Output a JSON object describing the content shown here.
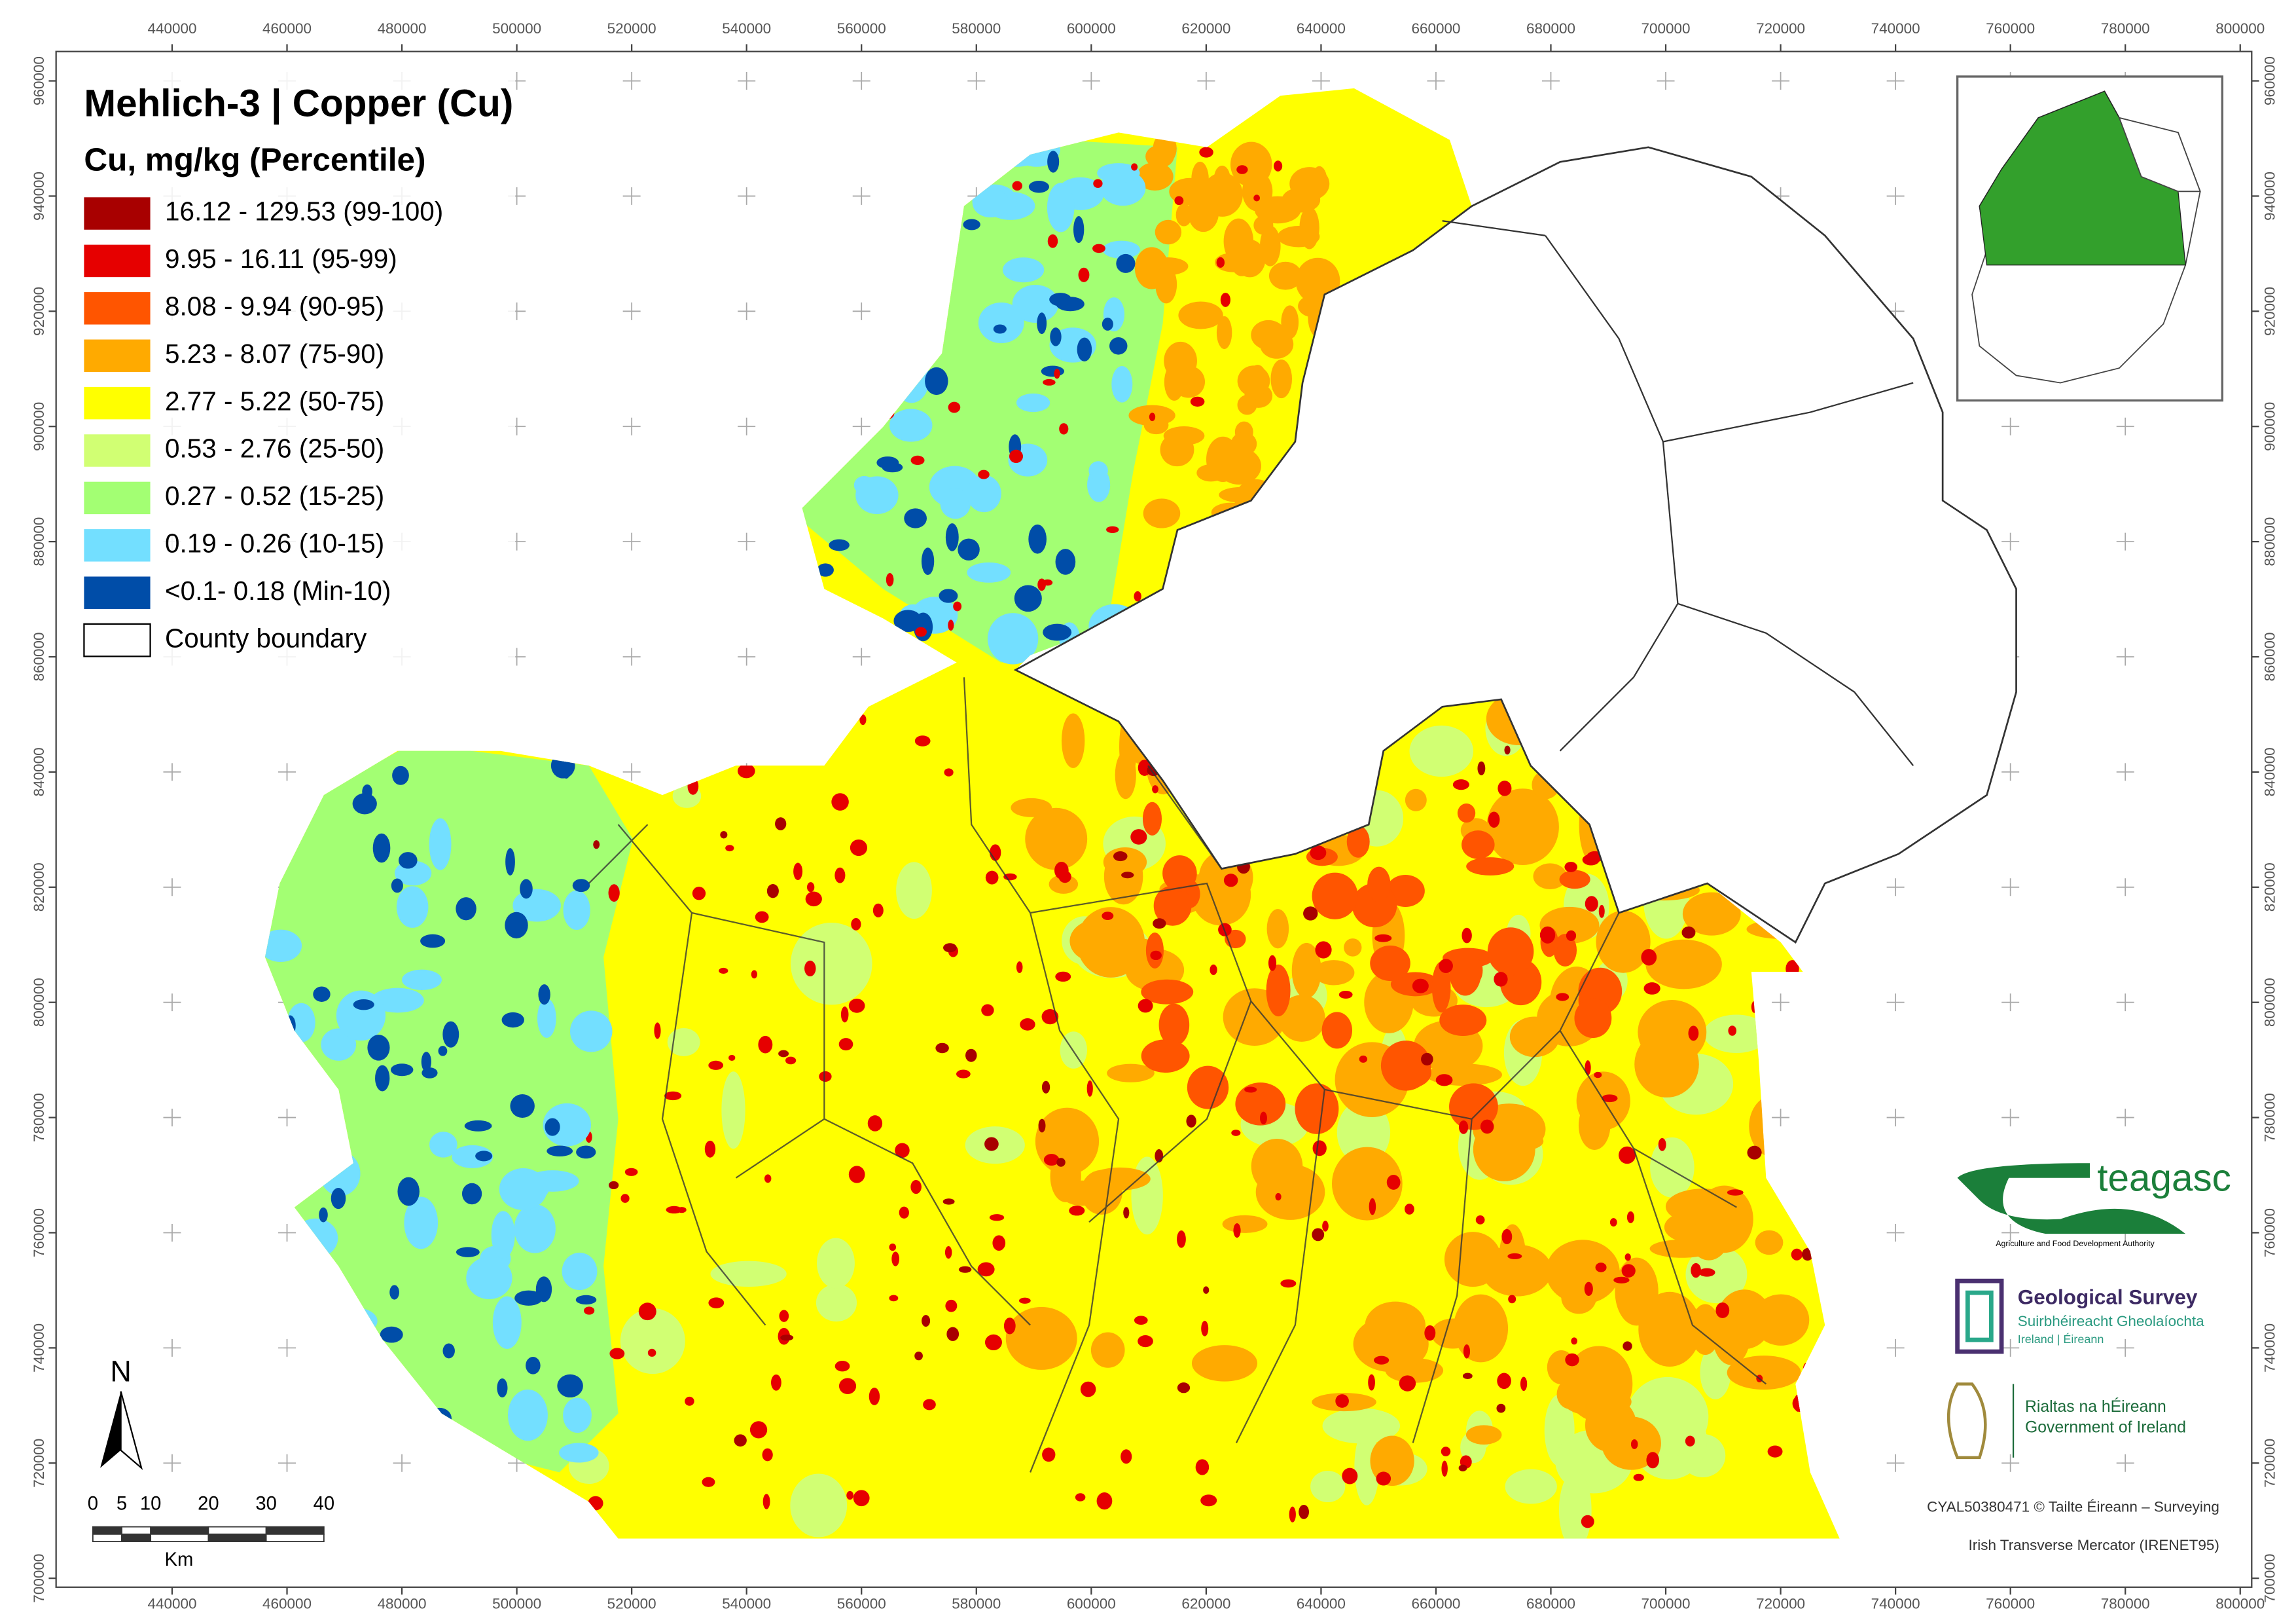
{
  "map": {
    "title": "Mehlich-3 | Copper (Cu)",
    "legend_title": "Cu, mg/kg (Percentile)",
    "legend": [
      {
        "label": "16.12 - 129.53 (99-100)",
        "color": "#a80000"
      },
      {
        "label": "9.95 - 16.11 (95-99)",
        "color": "#e60000"
      },
      {
        "label": "8.08 - 9.94 (90-95)",
        "color": "#ff5500"
      },
      {
        "label": "5.23 - 8.07 (75-90)",
        "color": "#ffaa00"
      },
      {
        "label": "2.77 - 5.22 (50-75)",
        "color": "#ffff00"
      },
      {
        "label": "0.53 - 2.76 (25-50)",
        "color": "#d1ff73"
      },
      {
        "label": "0.27 - 0.52 (15-25)",
        "color": "#a3ff73"
      },
      {
        "label": "0.19 - 0.26 (10-15)",
        "color": "#73dfff"
      },
      {
        "label": "<0.1- 0.18 (Min-10)",
        "color": "#004da8"
      },
      {
        "label": "County boundary",
        "color": "#ffffff"
      }
    ],
    "xlim": [
      419800,
      802000
    ],
    "ylim": [
      698450,
      965100
    ],
    "xticks": [
      440000,
      460000,
      480000,
      500000,
      520000,
      540000,
      560000,
      580000,
      600000,
      620000,
      640000,
      660000,
      680000,
      700000,
      720000,
      740000,
      760000,
      780000,
      800000
    ],
    "yticks": [
      700000,
      720000,
      740000,
      760000,
      780000,
      800000,
      820000,
      840000,
      860000,
      880000,
      900000,
      920000,
      940000,
      960000
    ],
    "north": "N",
    "scale_bar": {
      "ticks": [
        0,
        5,
        10,
        20,
        30,
        40
      ],
      "unit": "Km"
    },
    "logos": {
      "teagasc": "teagasc",
      "teagasc_sub": "Agriculture and Food Development Authority",
      "gsi": "Geological Survey",
      "gsi_irish": "Suirbhéireacht Gheolaíochta",
      "gsi_sub": "Ireland | Éireann",
      "gov_irish": "Rialtas na hÉireann",
      "gov": "Government of Ireland"
    },
    "credits": [
      "CYAL50380471 © Tailte Éireann – Surveying",
      "Irish Transverse Mercator (IRENET95)"
    ]
  }
}
